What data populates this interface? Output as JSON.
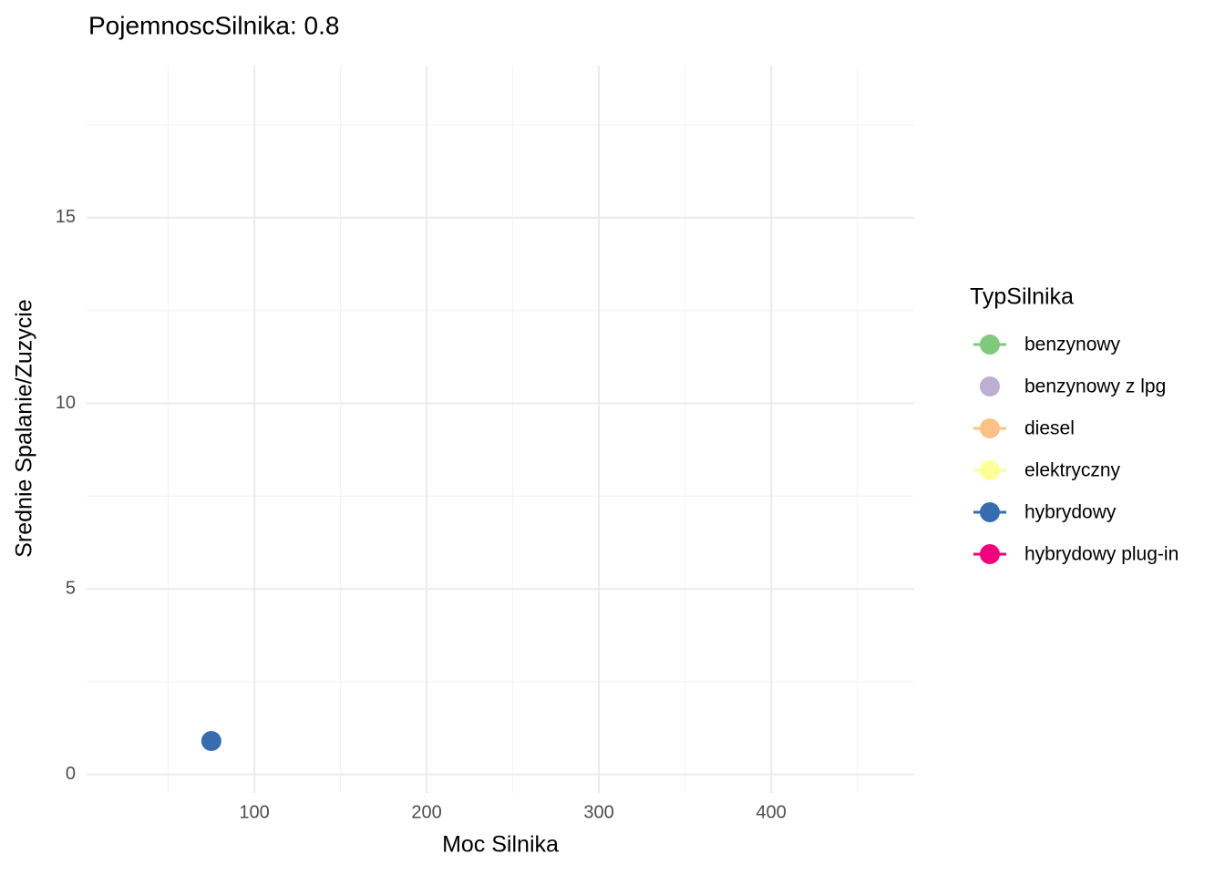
{
  "chart_data": {
    "type": "scatter",
    "title": "PojemnoscSilnika: 0.8",
    "x_label": "Moc Silnika",
    "y_label": "Srednie Spalanie/Zuzycie",
    "legend_title": "TypSilnika",
    "legend_position": "right",
    "grid": true,
    "xlim": [
      2.6,
      483
    ],
    "ylim": [
      -0.5,
      19.1
    ],
    "xticks": [
      100,
      200,
      300,
      400
    ],
    "yticks": [
      0,
      5,
      10,
      15
    ],
    "xminor": [
      50,
      150,
      250,
      350,
      450
    ],
    "yminor": [
      2.5,
      7.5,
      12.5,
      17.5
    ],
    "series": [
      {
        "name": "benzynowy",
        "color": "#7fc97f",
        "line": true,
        "x": [],
        "values": []
      },
      {
        "name": "benzynowy z lpg",
        "color": "#beaed4",
        "line": false,
        "x": [],
        "values": []
      },
      {
        "name": "diesel",
        "color": "#fdc086",
        "line": true,
        "x": [],
        "values": []
      },
      {
        "name": "elektryczny",
        "color": "#ffff99",
        "line": true,
        "x": [],
        "values": []
      },
      {
        "name": "hybrydowy",
        "color": "#386cb0",
        "line": true,
        "x": [
          75
        ],
        "values": [
          0.9
        ]
      },
      {
        "name": "hybrydowy plug-in",
        "color": "#f0027f",
        "line": true,
        "x": [],
        "values": []
      }
    ]
  }
}
